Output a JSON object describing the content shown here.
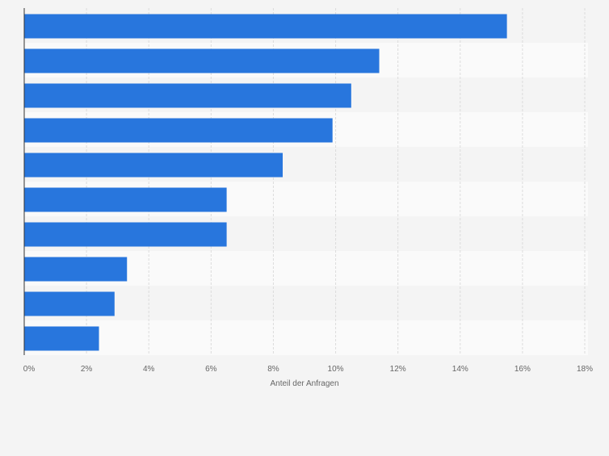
{
  "chart_data": {
    "type": "bar",
    "orientation": "horizontal",
    "categories": [
      "",
      "",
      "",
      "",
      "",
      "",
      "",
      "",
      "",
      ""
    ],
    "values": [
      15.5,
      11.4,
      10.5,
      9.9,
      8.3,
      6.5,
      6.5,
      3.3,
      2.9,
      2.4
    ],
    "x_ticks": [
      "0%",
      "2%",
      "4%",
      "6%",
      "8%",
      "10%",
      "12%",
      "14%",
      "16%",
      "18%"
    ],
    "xlim": [
      0,
      18
    ],
    "xlabel": "Anteil der Anfragen",
    "ylabel": "",
    "title": "",
    "grid": "vertical",
    "colors": {
      "bar": "#2876dd",
      "band_light": "#fafafa",
      "band_dark": "#f4f4f4",
      "grid": "#dcdcdc",
      "axis": "#333333",
      "tick_text": "#666666"
    }
  }
}
